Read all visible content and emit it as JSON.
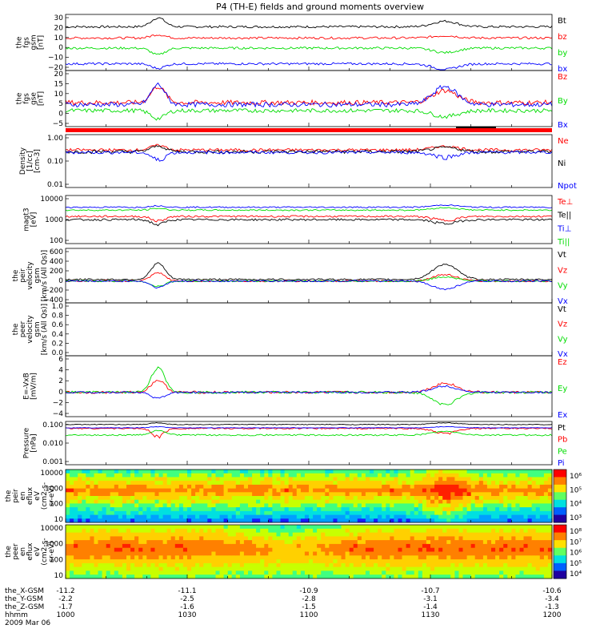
{
  "title": "P4 (TH-E) fields and ground moments overview",
  "colors": {
    "black": "#000000",
    "red": "#ff0000",
    "green": "#00dd00",
    "blue": "#0000ff"
  },
  "time_axis": {
    "start": "10:00",
    "end": "12:00",
    "tick_times": [
      "10:00",
      "10:30",
      "11:00",
      "11:30",
      "12:00"
    ]
  },
  "chart_data": [
    {
      "type": "line",
      "panel": "fgs-gsm",
      "ylabel": [
        "the",
        "fgs",
        "gsm",
        "[nT]"
      ],
      "yticks": [
        "30",
        "20",
        "10",
        "0",
        "−10",
        "−20"
      ],
      "ylim": [
        -20,
        30
      ],
      "series": [
        {
          "name": "Bt",
          "color": "black",
          "base": 19,
          "events": [
            8,
            5
          ],
          "noise": 1
        },
        {
          "name": "bz",
          "color": "red",
          "base": 9,
          "events": [
            3,
            2
          ],
          "noise": 1
        },
        {
          "name": "by",
          "color": "green",
          "base": 0,
          "events": [
            -6,
            -4
          ],
          "noise": 1
        },
        {
          "name": "bx",
          "color": "blue",
          "base": -14,
          "events": [
            -4,
            -5
          ],
          "noise": 1
        }
      ]
    },
    {
      "type": "line",
      "panel": "fgs-gse",
      "ylabel": [
        "the",
        "fgs",
        "gse",
        "[nT]"
      ],
      "yticks": [
        "20",
        "15",
        "10",
        "5",
        "0",
        "−5"
      ],
      "ylim": [
        -8,
        20
      ],
      "series": [
        {
          "name": "Bz",
          "color": "red",
          "base": 4,
          "events": [
            8,
            6
          ],
          "noise": 1.2
        },
        {
          "name": "By",
          "color": "green",
          "base": 0,
          "events": [
            -4,
            -3
          ],
          "noise": 1
        },
        {
          "name": "Bx",
          "color": "blue",
          "base": 3,
          "events": [
            10,
            9
          ],
          "noise": 1.2
        }
      ]
    },
    {
      "type": "line",
      "panel": "density",
      "ylabel": [
        "Density",
        "[1/cc]",
        "[cm-3]"
      ],
      "yticks": [
        "1.00",
        "0.10",
        "0.01"
      ],
      "yscale": "log",
      "ylim": [
        0.01,
        1.5
      ],
      "series": [
        {
          "name": "Ne",
          "color": "red",
          "base": 0.35,
          "events": [
            0.2,
            0.15
          ],
          "noise": 0.05
        },
        {
          "name": "Ni",
          "color": "black",
          "base": 0.3,
          "events": [
            0.2,
            0.15
          ],
          "noise": 0.05
        },
        {
          "name": "Npot",
          "color": "blue",
          "base": 0.28,
          "events": [
            -0.15,
            -0.1
          ],
          "noise": 0.04
        }
      ]
    },
    {
      "type": "line",
      "panel": "temperature",
      "ylabel": [
        "magt3",
        "[eV]"
      ],
      "yticks": [
        "10000",
        "1000",
        "100"
      ],
      "yscale": "log",
      "ylim": [
        100,
        20000
      ],
      "series": [
        {
          "name": "Te⊥",
          "color": "red",
          "base": 2000,
          "events": [
            -800,
            -700
          ],
          "noise": 200
        },
        {
          "name": "Te||",
          "color": "black",
          "base": 1400,
          "events": [
            -600,
            -500
          ],
          "noise": 150
        },
        {
          "name": "Ti⊥",
          "color": "blue",
          "base": 5500,
          "events": [
            1000,
            1500
          ],
          "noise": 400
        },
        {
          "name": "Ti||",
          "color": "green",
          "base": 4000,
          "events": [
            800,
            1200
          ],
          "noise": 300
        }
      ]
    },
    {
      "type": "line",
      "panel": "peir-velocity",
      "ylabel": [
        "the",
        "peir",
        "velocity",
        "gsm",
        "[km/s (All Qs)]"
      ],
      "yticks": [
        "600",
        "400",
        "200",
        "0",
        "−200",
        "−400"
      ],
      "ylim": [
        -400,
        600
      ],
      "series": [
        {
          "name": "Vt",
          "color": "black",
          "base": 30,
          "events": [
            300,
            280
          ],
          "noise": 15
        },
        {
          "name": "Vz",
          "color": "red",
          "base": 0,
          "events": [
            150,
            120
          ],
          "noise": 15
        },
        {
          "name": "Vy",
          "color": "green",
          "base": 0,
          "events": [
            -100,
            80
          ],
          "noise": 15
        },
        {
          "name": "Vx",
          "color": "blue",
          "base": 0,
          "events": [
            -120,
            -150
          ],
          "noise": 15
        }
      ]
    },
    {
      "type": "line",
      "panel": "peer-velocity",
      "ylabel": [
        "the",
        "peer",
        "velocity",
        "gsm",
        "[km/s (All Qs)]"
      ],
      "yticks": [
        "1.0",
        "0.8",
        "0.6",
        "0.4",
        "0.2",
        "0.0"
      ],
      "ylim": [
        0,
        1
      ],
      "series": [
        {
          "name": "Vt",
          "color": "black"
        },
        {
          "name": "Vz",
          "color": "red"
        },
        {
          "name": "Vy",
          "color": "green"
        },
        {
          "name": "Vx",
          "color": "blue"
        }
      ]
    },
    {
      "type": "line",
      "panel": "e-field",
      "ylabel": [
        "E=-VxB",
        "[mV/m]"
      ],
      "yticks": [
        "6",
        "4",
        "2",
        "0",
        "−2",
        "−4"
      ],
      "ylim": [
        -4,
        6
      ],
      "series": [
        {
          "name": "Ez",
          "color": "red",
          "base": 0,
          "events": [
            2,
            1.5
          ],
          "noise": 0.2
        },
        {
          "name": "Ey",
          "color": "green",
          "base": 0,
          "events": [
            4,
            -2
          ],
          "noise": 0.2
        },
        {
          "name": "Ex",
          "color": "blue",
          "base": 0,
          "events": [
            -1,
            1
          ],
          "noise": 0.15
        }
      ]
    },
    {
      "type": "line",
      "panel": "pressure",
      "ylabel": [
        "Pressure",
        "[nPa]"
      ],
      "yticks": [
        "0.100",
        "0.010",
        "0.001"
      ],
      "yscale": "log",
      "ylim": [
        0.001,
        0.3
      ],
      "series": [
        {
          "name": "Pt",
          "color": "black",
          "base": 0.2,
          "events": [
            0.05,
            0.05
          ],
          "noise": 0.01
        },
        {
          "name": "Pb",
          "color": "red",
          "base": 0.12,
          "events": [
            -0.08,
            -0.06
          ],
          "noise": 0.01
        },
        {
          "name": "Pe",
          "color": "green",
          "base": 0.05,
          "events": [
            0.04,
            0.03
          ],
          "noise": 0.005
        },
        {
          "name": "Pi",
          "color": "blue",
          "base": 0.13,
          "events": [
            0.02,
            0.02
          ],
          "noise": 0.005
        }
      ]
    },
    {
      "type": "heatmap",
      "panel": "peir-spectrogram",
      "ylabel": [
        "the",
        "peir",
        "en",
        "eflux",
        "eV",
        "(cm2-s-",
        "sr-eV)"
      ],
      "yticks": [
        "10000",
        "1000",
        "100",
        "10"
      ],
      "colorbar_ticks": [
        "10⁶",
        "10⁵",
        "10⁴",
        "10³"
      ]
    },
    {
      "type": "heatmap",
      "panel": "peer-spectrogram",
      "ylabel": [
        "the",
        "peer",
        "en",
        "eflux",
        "eV",
        "(cm2-s-",
        "sr-eV)"
      ],
      "yticks": [
        "10000",
        "1000",
        "100",
        "10"
      ],
      "colorbar_ticks": [
        "10⁸",
        "10⁷",
        "10⁶",
        "10⁵",
        "10⁴"
      ]
    }
  ],
  "ephemeris": {
    "rows": [
      {
        "label": "the_X-GSM",
        "values": [
          "-11.2",
          "-11.1",
          "-10.9",
          "-10.7",
          "-10.6"
        ]
      },
      {
        "label": "the_Y-GSM",
        "values": [
          "-2.2",
          "-2.5",
          "-2.8",
          "-3.1",
          "-3.4"
        ]
      },
      {
        "label": "the_Z-GSM",
        "values": [
          "-1.7",
          "-1.6",
          "-1.5",
          "-1.4",
          "-1.3"
        ]
      },
      {
        "label": "hhmm",
        "values": [
          "1000",
          "1030",
          "1100",
          "1130",
          "1200"
        ]
      }
    ],
    "date": "2009 Mar 06"
  }
}
